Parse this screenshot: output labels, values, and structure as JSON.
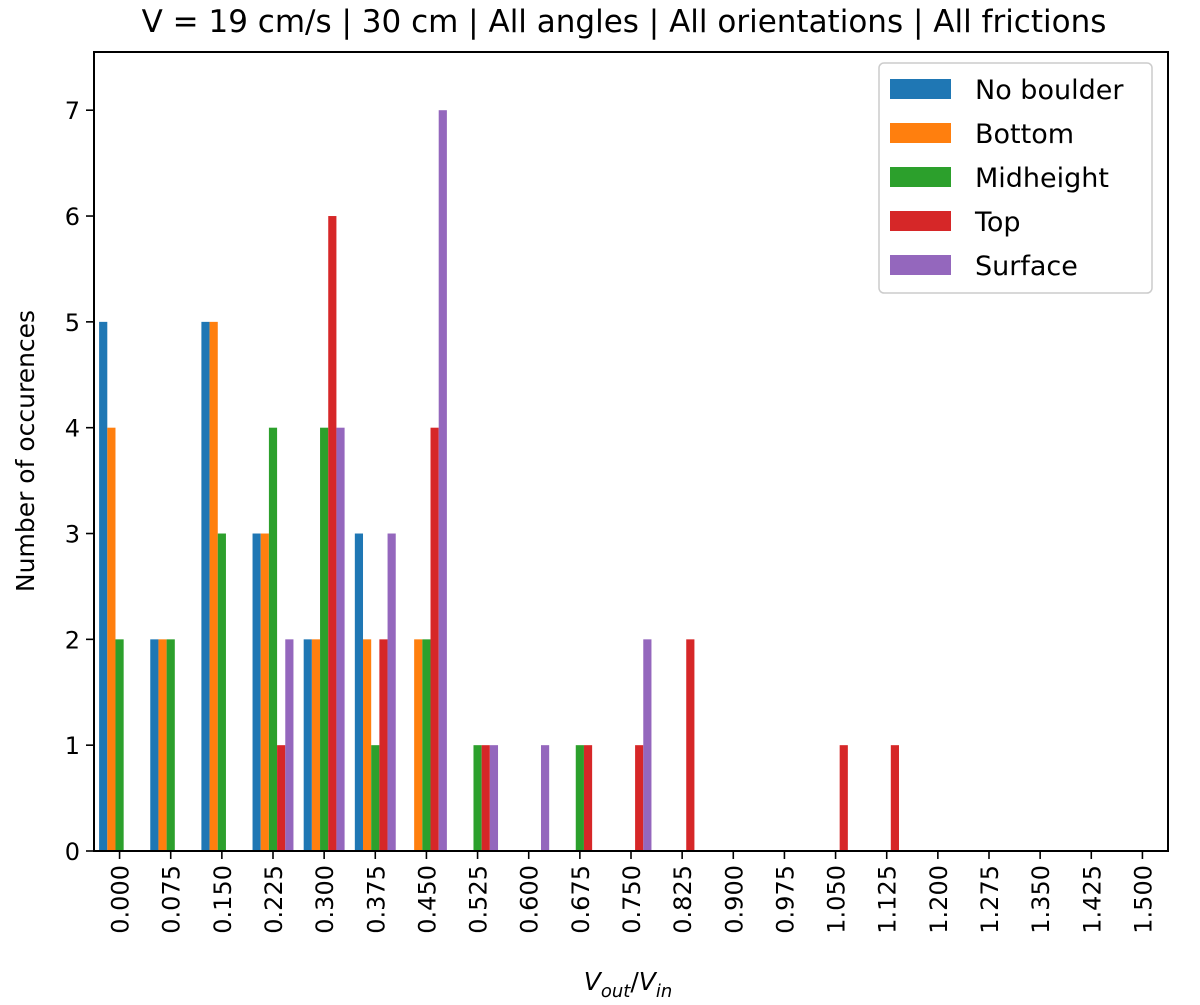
{
  "chart_data": {
    "type": "bar",
    "title": "V = 19 cm/s | 30 cm | All angles | All orientations | All frictions",
    "xlabel": {
      "main": "V",
      "sub1": "out",
      "slash": "/",
      "main2": "V",
      "sub2": "in"
    },
    "ylabel": "Number of occurences",
    "ylim": [
      0,
      7.55
    ],
    "xlim": [
      -0.0375,
      1.5375
    ],
    "x_ticks": [
      "0.000",
      "0.075",
      "0.150",
      "0.225",
      "0.300",
      "0.375",
      "0.450",
      "0.525",
      "0.600",
      "0.675",
      "0.750",
      "0.825",
      "0.900",
      "0.975",
      "1.050",
      "1.125",
      "1.200",
      "1.275",
      "1.350",
      "1.425",
      "1.500"
    ],
    "y_ticks": [
      "0",
      "1",
      "2",
      "3",
      "4",
      "5",
      "6",
      "7"
    ],
    "bin_width": 0.075,
    "legend_position": "top-right",
    "grid": false,
    "series": [
      {
        "name": "No boulder",
        "color": "#1f77b4",
        "x": [
          0.0,
          0.075,
          0.15,
          0.225,
          0.3,
          0.375
        ],
        "values": [
          5,
          2,
          5,
          3,
          2,
          3
        ]
      },
      {
        "name": "Bottom",
        "color": "#ff7f0e",
        "x": [
          0.0,
          0.075,
          0.15,
          0.225,
          0.3,
          0.375,
          0.45
        ],
        "values": [
          4,
          2,
          5,
          3,
          2,
          2,
          2
        ]
      },
      {
        "name": "Midheight",
        "color": "#2ca02c",
        "x": [
          0.0,
          0.075,
          0.15,
          0.225,
          0.3,
          0.375,
          0.45,
          0.525,
          0.675
        ],
        "values": [
          2,
          2,
          3,
          4,
          4,
          1,
          2,
          1,
          1
        ]
      },
      {
        "name": "Top",
        "color": "#d62728",
        "x": [
          0.225,
          0.3,
          0.375,
          0.45,
          0.525,
          0.675,
          0.75,
          0.825,
          1.05,
          1.125
        ],
        "values": [
          1,
          6,
          2,
          4,
          1,
          1,
          1,
          2,
          1,
          1
        ]
      },
      {
        "name": "Surface",
        "color": "#9467bd",
        "x": [
          0.225,
          0.3,
          0.375,
          0.45,
          0.525,
          0.6,
          0.75
        ],
        "values": [
          2,
          4,
          3,
          7,
          1,
          1,
          2
        ]
      }
    ]
  }
}
